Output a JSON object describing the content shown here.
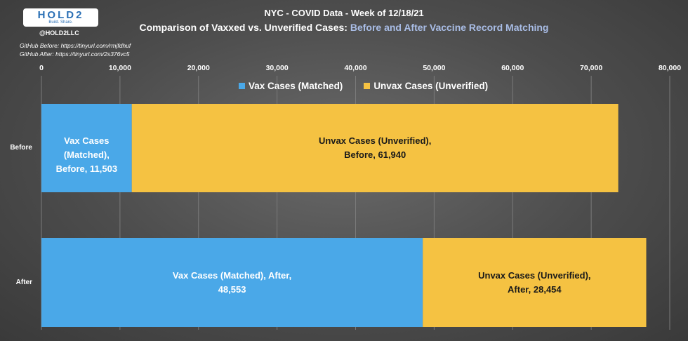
{
  "header": {
    "logo_text": "HOLD2",
    "logo_tagline": "Build. Share.",
    "handle": "@HOLD2LLC",
    "github_before": "GitHub Before: https://tinyurl.com/rmjfdhuf",
    "github_after": "GitHub After: https://tinyurl.com/2s376vc5"
  },
  "chart_data": {
    "type": "bar",
    "orientation": "horizontal",
    "stacked": true,
    "title": "NYC - COVID Data - Week of 12/18/21",
    "subtitle_prefix": "Comparison of Vaxxed vs. Unverified Cases: ",
    "subtitle_highlight": "Before and After Vaccine Record Matching",
    "categories": [
      "Before",
      "After"
    ],
    "series": [
      {
        "name": "Vax Cases (Matched)",
        "color": "#4aa8e8",
        "values": [
          11503,
          48553
        ],
        "data_labels": [
          [
            "Vax Cases (Matched),",
            "Before, 11,503"
          ],
          [
            "Vax Cases (Matched), After,",
            "48,553"
          ]
        ]
      },
      {
        "name": "Unvax Cases (Unverified)",
        "color": "#f5c242",
        "values": [
          61940,
          28454
        ],
        "data_labels": [
          [
            "Unvax Cases (Unverified),",
            "Before, 61,940"
          ],
          [
            "Unvax Cases (Unverified),",
            "After, 28,454"
          ]
        ]
      }
    ],
    "xlim": [
      0,
      80000
    ],
    "xticks": [
      0,
      10000,
      20000,
      30000,
      40000,
      50000,
      60000,
      70000,
      80000
    ],
    "xtick_labels": [
      "0",
      "10,000",
      "20,000",
      "30,000",
      "40,000",
      "50,000",
      "60,000",
      "70,000",
      "80,000"
    ],
    "axis_position": "top",
    "grid": true,
    "legend": "top-center"
  }
}
